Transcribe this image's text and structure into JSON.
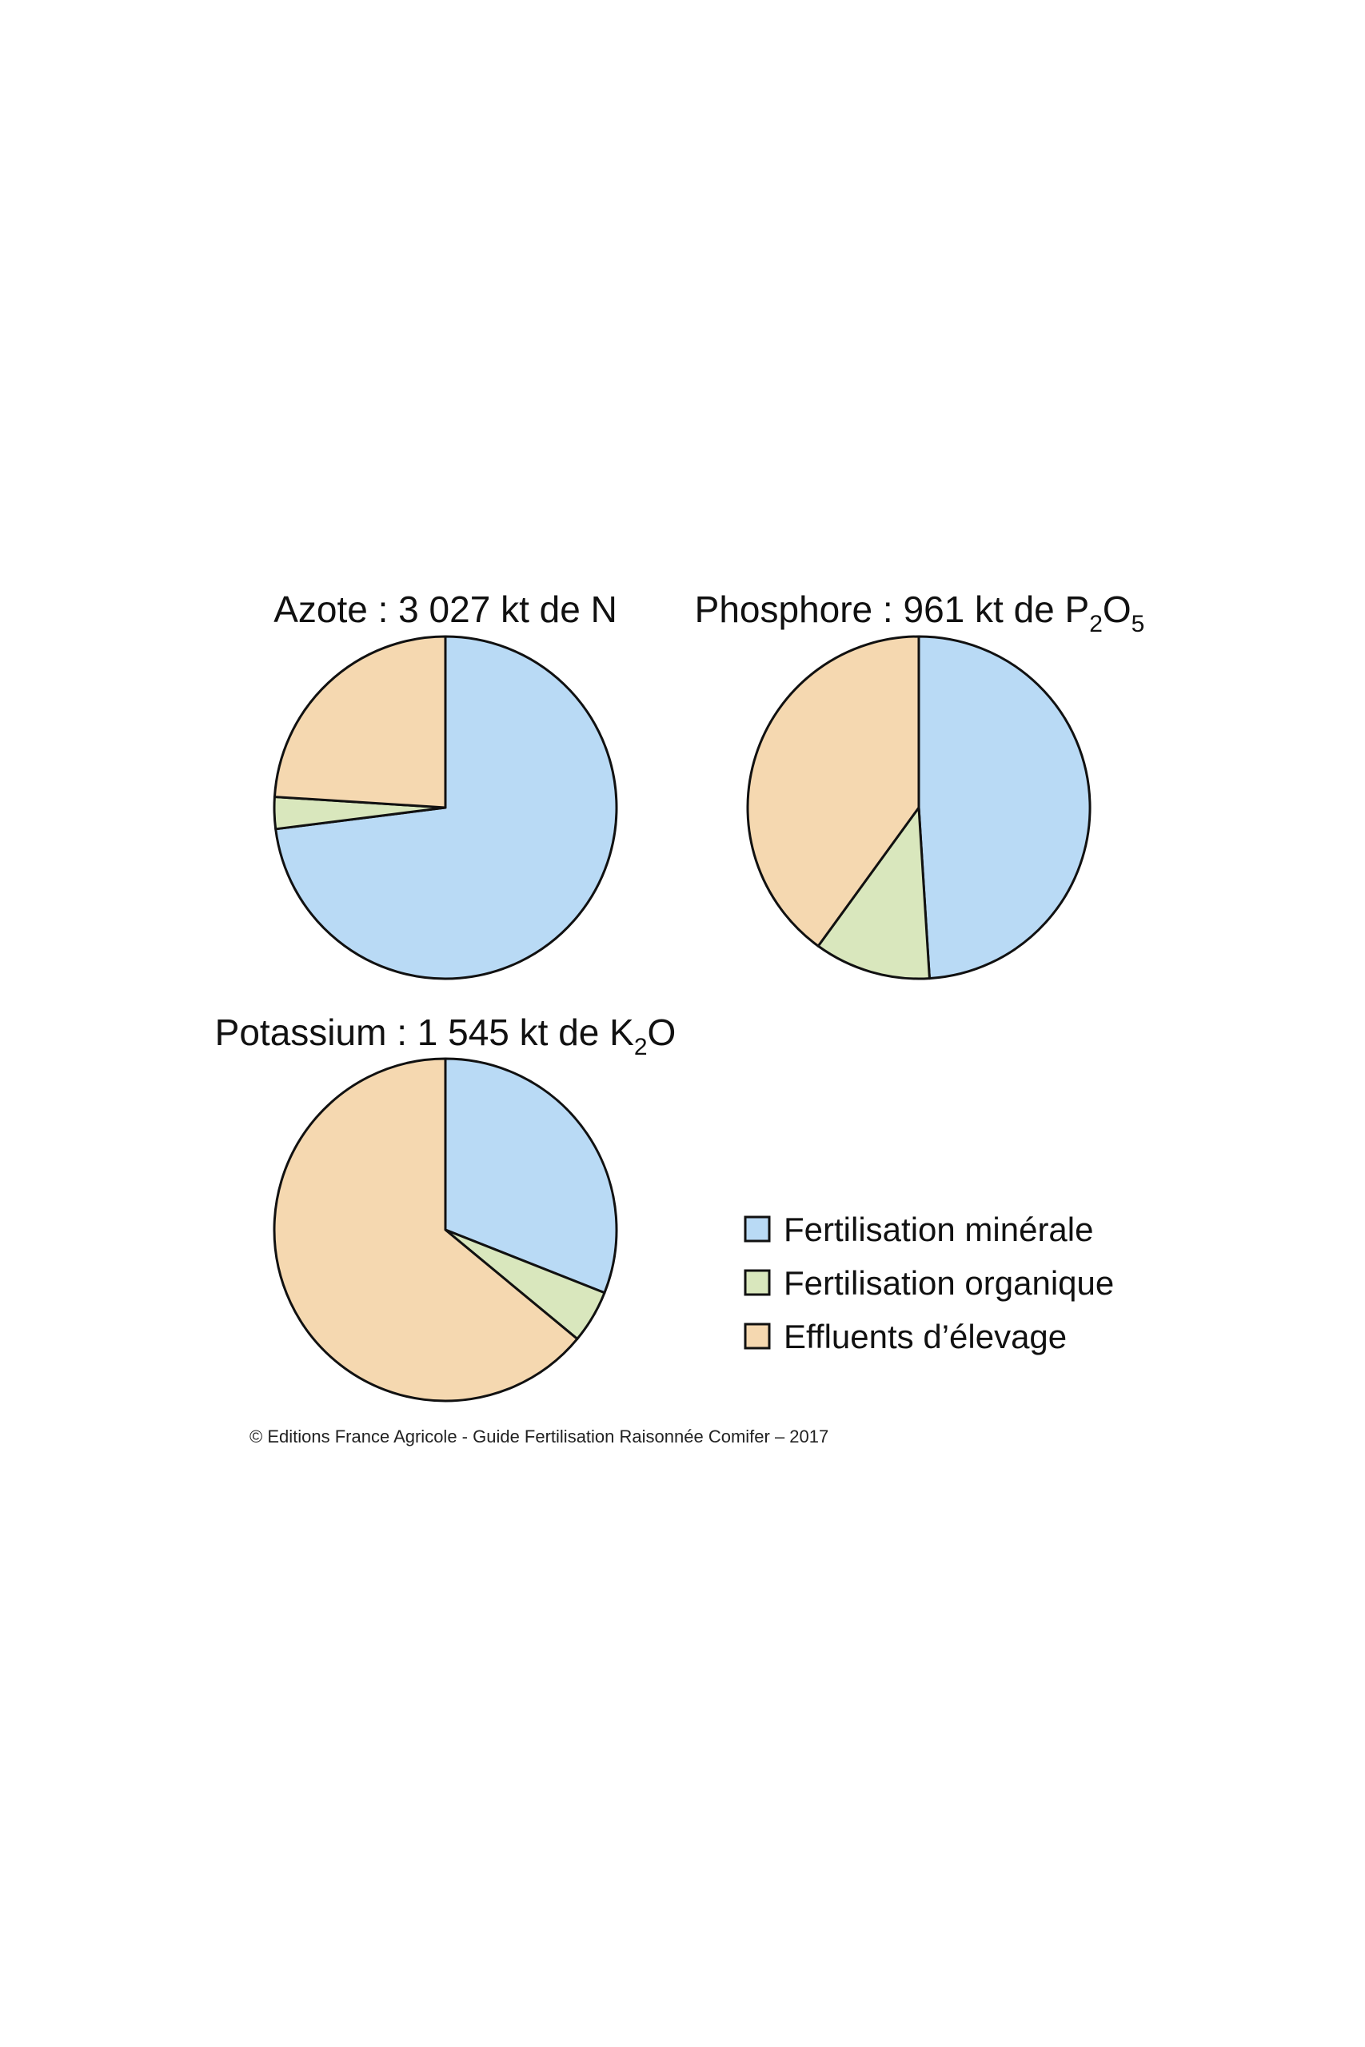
{
  "chart_data": [
    {
      "type": "pie",
      "title": {
        "prefix": "Azote : 3 027 kt de N",
        "sub1": "",
        "mid": "",
        "sub2": ""
      },
      "values": [
        73,
        3,
        24
      ],
      "categories": [
        "Fertilisation minérale",
        "Fertilisation organique",
        "Effluents d’élevage"
      ]
    },
    {
      "type": "pie",
      "title": {
        "prefix": "Phosphore : 961 kt de P",
        "sub1": "2",
        "mid": "O",
        "sub2": "5"
      },
      "values": [
        49,
        11,
        40
      ],
      "categories": [
        "Fertilisation minérale",
        "Fertilisation organique",
        "Effluents d’élevage"
      ]
    },
    {
      "type": "pie",
      "title": {
        "prefix": "Potassium : 1 545 kt de K",
        "sub1": "2",
        "mid": "O",
        "sub2": ""
      },
      "values": [
        31,
        5,
        64
      ],
      "categories": [
        "Fertilisation minérale",
        "Fertilisation organique",
        "Effluents d’élevage"
      ]
    }
  ],
  "legend": [
    {
      "label": "Fertilisation minérale",
      "color": "#b9daf5"
    },
    {
      "label": "Fertilisation organique",
      "color": "#d9e7bd"
    },
    {
      "label": "Effluents d’élevage",
      "color": "#f5d8b0"
    }
  ],
  "colors": [
    "#b9daf5",
    "#d9e7bd",
    "#f5d8b0"
  ],
  "source": "© Editions France Agricole - Guide Fertilisation Raisonnée Comifer – 2017"
}
